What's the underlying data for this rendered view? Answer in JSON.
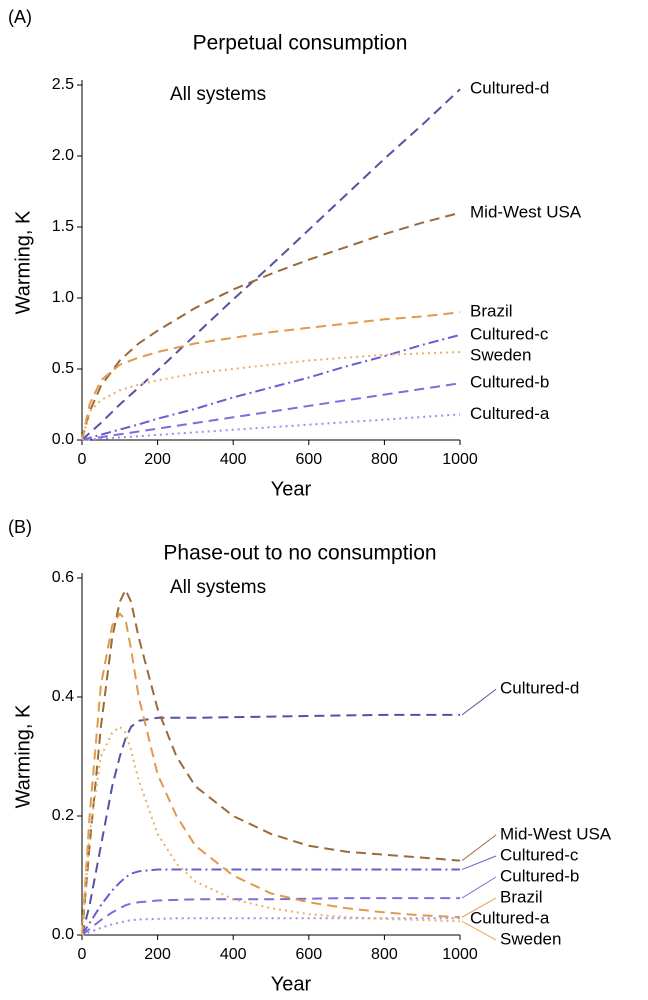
{
  "chart_data": [
    {
      "type": "line",
      "panel": "(A)",
      "title": "Perpetual consumption",
      "annotation": "All systems",
      "x_label": "Year",
      "y_label": "Warming, K",
      "xlim": [
        0,
        1000
      ],
      "xticks": [
        0,
        200,
        400,
        600,
        800,
        1000
      ],
      "ylim": [
        0,
        2.5
      ],
      "yticks": [
        {
          "value": 0,
          "label": "0.0"
        },
        0.5,
        {
          "value": 1,
          "label": "1.0"
        },
        1.5,
        {
          "value": 2,
          "label": "2.0"
        },
        2.5
      ],
      "x": [
        0,
        20,
        50,
        100,
        150,
        200,
        300,
        400,
        500,
        600,
        700,
        800,
        900,
        1000
      ],
      "series": [
        {
          "name": "Cultured-d",
          "color": "#5a4fa0",
          "dash": "dashed",
          "values": [
            0,
            0.05,
            0.12,
            0.25,
            0.37,
            0.49,
            0.74,
            0.99,
            1.23,
            1.48,
            1.73,
            1.98,
            2.22,
            2.47
          ]
        },
        {
          "name": "Mid-West USA",
          "color": "#9a6a3a",
          "dash": "dashed",
          "values": [
            0,
            0.2,
            0.38,
            0.56,
            0.68,
            0.77,
            0.93,
            1.06,
            1.17,
            1.27,
            1.36,
            1.45,
            1.53,
            1.6
          ]
        },
        {
          "name": "Brazil",
          "color": "#e09a4a",
          "dash": "dashed",
          "values": [
            0,
            0.25,
            0.42,
            0.53,
            0.58,
            0.62,
            0.68,
            0.72,
            0.76,
            0.79,
            0.82,
            0.85,
            0.87,
            0.9
          ]
        },
        {
          "name": "Cultured-c",
          "color": "#6a5cd0",
          "dash": "dashdot",
          "values": [
            0,
            0.015,
            0.037,
            0.074,
            0.11,
            0.15,
            0.22,
            0.3,
            0.37,
            0.44,
            0.52,
            0.59,
            0.67,
            0.74
          ]
        },
        {
          "name": "Sweden",
          "color": "#e8b060",
          "dash": "dotted",
          "values": [
            0,
            0.2,
            0.28,
            0.35,
            0.39,
            0.42,
            0.47,
            0.5,
            0.53,
            0.56,
            0.58,
            0.6,
            0.61,
            0.62
          ]
        },
        {
          "name": "Cultured-b",
          "color": "#7c6ee0",
          "dash": "dashed",
          "values": [
            0,
            0.008,
            0.02,
            0.04,
            0.06,
            0.08,
            0.12,
            0.16,
            0.2,
            0.24,
            0.28,
            0.32,
            0.36,
            0.4
          ]
        },
        {
          "name": "Cultured-a",
          "color": "#9a8ef0",
          "dash": "dotted",
          "values": [
            0,
            0.004,
            0.009,
            0.018,
            0.027,
            0.036,
            0.054,
            0.072,
            0.09,
            0.108,
            0.126,
            0.144,
            0.162,
            0.18
          ]
        }
      ]
    },
    {
      "type": "line",
      "panel": "(B)",
      "title": "Phase-out to no consumption",
      "annotation": "All systems",
      "x_label": "Year",
      "y_label": "Warming, K",
      "xlim": [
        0,
        1000
      ],
      "xticks": [
        0,
        200,
        400,
        600,
        800,
        1000
      ],
      "ylim": [
        0,
        0.6
      ],
      "yticks": [
        {
          "value": 0,
          "label": "0.0"
        },
        0.2,
        0.4,
        0.6
      ],
      "x": [
        0,
        20,
        50,
        80,
        100,
        115,
        130,
        150,
        200,
        250,
        300,
        400,
        500,
        600,
        700,
        800,
        900,
        1000
      ],
      "series": [
        {
          "name": "Cultured-d",
          "color": "#5a4fa0",
          "dash": "dashed",
          "values": [
            0,
            0.05,
            0.15,
            0.25,
            0.3,
            0.33,
            0.35,
            0.36,
            0.365,
            0.365,
            0.365,
            0.366,
            0.367,
            0.368,
            0.369,
            0.37,
            0.37,
            0.37
          ]
        },
        {
          "name": "Mid-West USA",
          "color": "#9a6a3a",
          "dash": "dashed",
          "values": [
            0,
            0.15,
            0.35,
            0.5,
            0.56,
            0.58,
            0.56,
            0.5,
            0.38,
            0.3,
            0.25,
            0.2,
            0.17,
            0.15,
            0.14,
            0.135,
            0.13,
            0.125
          ]
        },
        {
          "name": "Cultured-c",
          "color": "#6a5cd0",
          "dash": "dashdot",
          "values": [
            0,
            0.02,
            0.05,
            0.075,
            0.088,
            0.097,
            0.103,
            0.107,
            0.11,
            0.11,
            0.11,
            0.11,
            0.11,
            0.11,
            0.11,
            0.11,
            0.11,
            0.11
          ]
        },
        {
          "name": "Cultured-b",
          "color": "#7c6ee0",
          "dash": "dashed",
          "values": [
            0,
            0.01,
            0.025,
            0.038,
            0.045,
            0.05,
            0.053,
            0.055,
            0.058,
            0.059,
            0.06,
            0.06,
            0.06,
            0.061,
            0.062,
            0.062,
            0.062,
            0.062
          ]
        },
        {
          "name": "Brazil",
          "color": "#e09a4a",
          "dash": "dashed",
          "values": [
            0,
            0.2,
            0.42,
            0.52,
            0.54,
            0.53,
            0.48,
            0.4,
            0.27,
            0.2,
            0.15,
            0.1,
            0.07,
            0.055,
            0.045,
            0.038,
            0.033,
            0.03
          ]
        },
        {
          "name": "Cultured-a",
          "color": "#9a8ef0",
          "dash": "dotted",
          "values": [
            0,
            0.005,
            0.012,
            0.018,
            0.021,
            0.023,
            0.025,
            0.026,
            0.027,
            0.028,
            0.028,
            0.028,
            0.028,
            0.028,
            0.028,
            0.028,
            0.028,
            0.028
          ]
        },
        {
          "name": "Sweden",
          "color": "#e8b060",
          "dash": "dotted",
          "values": [
            0,
            0.17,
            0.3,
            0.34,
            0.35,
            0.34,
            0.31,
            0.26,
            0.17,
            0.12,
            0.09,
            0.06,
            0.045,
            0.035,
            0.03,
            0.027,
            0.025,
            0.023
          ]
        }
      ]
    }
  ]
}
